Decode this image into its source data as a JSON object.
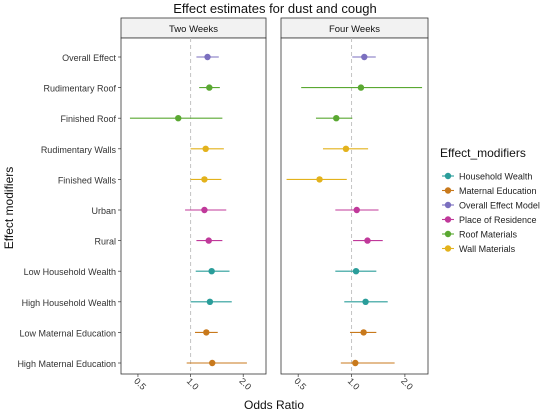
{
  "chart_data": {
    "type": "forest",
    "title": "Effect estimates for dust and cough",
    "xlabel": "Odds Ratio",
    "ylabel": "Effect modifiers",
    "x_scale": "log",
    "x_ticks": [
      0.5,
      1.0,
      2.0
    ],
    "x_tick_labels": [
      "0.5",
      "1.0",
      "2.0"
    ],
    "reference_line": 1.0,
    "xlim": [
      0.4,
      2.7
    ],
    "grid": false,
    "categories": [
      "Overall Effect",
      "Rudimentary Roof",
      "Finished Roof",
      "Rudimentary Walls",
      "Finished Walls",
      "Urban",
      "Rural",
      "Low Household Wealth",
      "High Household Wealth",
      "Low Maternal Education",
      "High Maternal Education"
    ],
    "legend": {
      "title": "Effect_modifiers",
      "position": "right",
      "items": [
        {
          "label": "Household Wealth",
          "color": "#2a9d9a"
        },
        {
          "label": "Maternal Education",
          "color": "#c8791c"
        },
        {
          "label": "Overall Effect Model",
          "color": "#7b6fbf"
        },
        {
          "label": "Place of Residence",
          "color": "#c0399a"
        },
        {
          "label": "Roof Materials",
          "color": "#5aa832"
        },
        {
          "label": "Wall Materials",
          "color": "#e3b21c"
        }
      ]
    },
    "panels": [
      {
        "title": "Two Weeks",
        "points": [
          {
            "category": "Overall Effect",
            "group": "Overall Effect Model",
            "or": 1.25,
            "lo": 1.08,
            "hi": 1.45
          },
          {
            "category": "Rudimentary Roof",
            "group": "Roof Materials",
            "or": 1.28,
            "lo": 1.12,
            "hi": 1.47
          },
          {
            "category": "Finished Roof",
            "group": "Roof Materials",
            "or": 0.85,
            "lo": 0.45,
            "hi": 1.52
          },
          {
            "category": "Rudimentary Walls",
            "group": "Wall Materials",
            "or": 1.22,
            "lo": 1.0,
            "hi": 1.55
          },
          {
            "category": "Finished Walls",
            "group": "Wall Materials",
            "or": 1.2,
            "lo": 1.0,
            "hi": 1.5
          },
          {
            "category": "Urban",
            "group": "Place of Residence",
            "or": 1.2,
            "lo": 0.93,
            "hi": 1.6
          },
          {
            "category": "Rural",
            "group": "Place of Residence",
            "or": 1.27,
            "lo": 1.08,
            "hi": 1.52
          },
          {
            "category": "Low Household Wealth",
            "group": "Household Wealth",
            "or": 1.32,
            "lo": 1.07,
            "hi": 1.67
          },
          {
            "category": "High Household Wealth",
            "group": "Household Wealth",
            "or": 1.29,
            "lo": 1.0,
            "hi": 1.72
          },
          {
            "category": "Low Maternal Education",
            "group": "Maternal Education",
            "or": 1.23,
            "lo": 1.06,
            "hi": 1.43
          },
          {
            "category": "High Maternal Education",
            "group": "Maternal Education",
            "or": 1.33,
            "lo": 0.95,
            "hi": 2.1
          }
        ]
      },
      {
        "title": "Four Weeks",
        "points": [
          {
            "category": "Overall Effect",
            "group": "Overall Effect Model",
            "or": 1.18,
            "lo": 1.01,
            "hi": 1.37
          },
          {
            "category": "Rudimentary Roof",
            "group": "Roof Materials",
            "or": 1.13,
            "lo": 0.52,
            "hi": 2.5
          },
          {
            "category": "Finished Roof",
            "group": "Roof Materials",
            "or": 0.82,
            "lo": 0.63,
            "hi": 1.01
          },
          {
            "category": "Rudimentary Walls",
            "group": "Wall Materials",
            "or": 0.93,
            "lo": 0.69,
            "hi": 1.24
          },
          {
            "category": "Finished Walls",
            "group": "Wall Materials",
            "or": 0.66,
            "lo": 0.43,
            "hi": 0.94
          },
          {
            "category": "Urban",
            "group": "Place of Residence",
            "or": 1.07,
            "lo": 0.81,
            "hi": 1.42
          },
          {
            "category": "Rural",
            "group": "Place of Residence",
            "or": 1.23,
            "lo": 1.02,
            "hi": 1.5
          },
          {
            "category": "Low Household Wealth",
            "group": "Household Wealth",
            "or": 1.06,
            "lo": 0.81,
            "hi": 1.38
          },
          {
            "category": "High Household Wealth",
            "group": "Household Wealth",
            "or": 1.2,
            "lo": 0.91,
            "hi": 1.6
          },
          {
            "category": "Low Maternal Education",
            "group": "Maternal Education",
            "or": 1.17,
            "lo": 0.98,
            "hi": 1.38
          },
          {
            "category": "High Maternal Education",
            "group": "Maternal Education",
            "or": 1.05,
            "lo": 0.87,
            "hi": 1.75
          }
        ]
      }
    ]
  }
}
